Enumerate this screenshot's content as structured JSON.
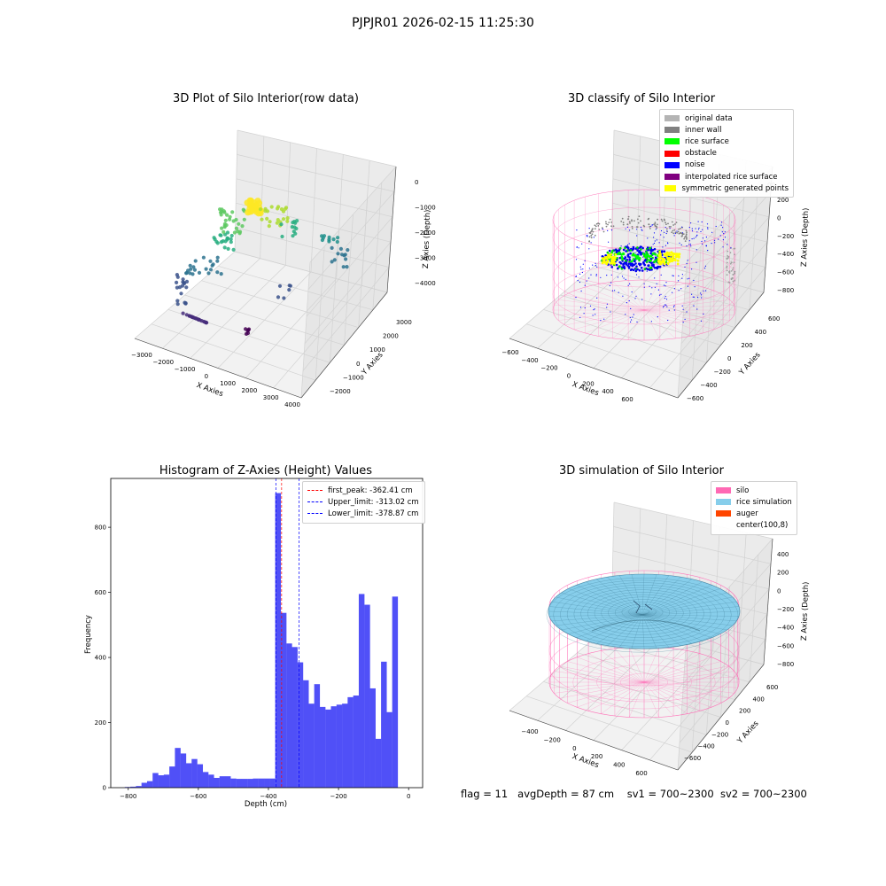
{
  "figure_title": "PJPJR01 2026-02-15 11:25:30",
  "status": {
    "flag": "flag = 11",
    "avg_depth": "avgDepth = 87 cm",
    "sv1": "sv1 = 700~2300",
    "sv2": "sv2 = 700~2300"
  },
  "colors": {
    "hist_bar": "#5050f7",
    "first_peak_line": "#ff0000",
    "limit_lines": "#0000ff",
    "silo_wire": "#ff69b4",
    "rice": "#87ceeb",
    "auger": "#ff4500"
  },
  "chart_data": [
    {
      "type": "scatter",
      "subtype": "3d-scatter",
      "title": "3D Plot of Silo Interior(row data)",
      "xlabel": "X Axies",
      "ylabel": "Y Axies",
      "zlabel": "Z Axies (Depth)",
      "x_ticks": [
        "−3000",
        "−2000",
        "−1000",
        "0",
        "1000",
        "2000",
        "3000",
        "4000"
      ],
      "y_ticks": [
        "−2000",
        "−1000",
        "0",
        "1000",
        "2000",
        "3000"
      ],
      "z_ticks": [
        "0",
        "−1000",
        "−2000",
        "−3000",
        "−4000"
      ],
      "colormap": "viridis",
      "grid": true
    },
    {
      "type": "scatter",
      "subtype": "3d-scatter",
      "title": "3D classify of Silo Interior",
      "xlabel": "X Axies",
      "ylabel": "Y Axies",
      "zlabel": "Z Axies (Depth)",
      "x_ticks": [
        "−600",
        "−400",
        "−200",
        "0",
        "200",
        "400",
        "600"
      ],
      "y_ticks": [
        "−600",
        "−400",
        "−200",
        "0",
        "200",
        "400",
        "600"
      ],
      "z_ticks": [
        "200",
        "0",
        "−200",
        "−400",
        "−600",
        "−800"
      ],
      "z_top_tick_partial": "00",
      "legend_position": "upper right",
      "legend": [
        {
          "label": "original data",
          "color": "#b4b4b4"
        },
        {
          "label": "inner wall",
          "color": "#808080"
        },
        {
          "label": "rice surface",
          "color": "#00ff00"
        },
        {
          "label": "obstacle",
          "color": "#ff0000"
        },
        {
          "label": "noise",
          "color": "#0000ff"
        },
        {
          "label": "interpolated rice surface",
          "color": "#800080"
        },
        {
          "label": "symmetric generated points",
          "color": "#ffff00"
        }
      ],
      "grid": true
    },
    {
      "type": "bar",
      "subtype": "histogram",
      "title": "Histogram of Z-Axies (Height) Values",
      "xlabel": "Depth (cm)",
      "ylabel": "Frequency",
      "xlim": [
        -850,
        40
      ],
      "ylim": [
        0,
        950
      ],
      "x_ticks": [
        -800,
        -600,
        -400,
        -200,
        0
      ],
      "x_tick_labels": [
        "−800",
        "−600",
        "−400",
        "−200",
        "0"
      ],
      "y_ticks": [
        0,
        200,
        400,
        600,
        800
      ],
      "bin_width": 15.9,
      "bin_starts": [
        -810,
        -794.1,
        -778.2,
        -762.3,
        -746.4,
        -730.5,
        -714.6,
        -698.7,
        -682.8,
        -666.9,
        -651,
        -635.1,
        -619.2,
        -603.3,
        -587.4,
        -571.5,
        -555.6,
        -539.7,
        -523.8,
        -507.9,
        -492,
        -476.1,
        -460.2,
        -444.3,
        -428.4,
        -412.5,
        -396.6,
        -380.7,
        -364.8,
        -348.9,
        -333,
        -317.1,
        -301.2,
        -285.3,
        -269.4,
        -253.5,
        -237.6,
        -221.7,
        -205.8,
        -189.9,
        -174,
        -158.1,
        -142.2,
        -126.3,
        -110.4,
        -94.5,
        -78.6,
        -62.7,
        -46.8,
        -30.9,
        -15
      ],
      "values": [
        2,
        3,
        5,
        15,
        20,
        45,
        38,
        40,
        65,
        122,
        105,
        75,
        88,
        72,
        48,
        40,
        30,
        35,
        35,
        28,
        27,
        27,
        27,
        28,
        28,
        28,
        28,
        905,
        537,
        443,
        432,
        385,
        330,
        258,
        318,
        248,
        240,
        250,
        255,
        258,
        278,
        283,
        595,
        562,
        305,
        150,
        387,
        232,
        587,
        0,
        0
      ],
      "reference_lines": [
        {
          "label": "first_peak: -362.41 cm",
          "x": -362.41,
          "color": "#ff0000",
          "style": "dashed"
        },
        {
          "label": "Upper_limit: -313.02 cm",
          "x": -313.02,
          "color": "#0000ff",
          "style": "dashed"
        },
        {
          "label": "Lower_limit: -378.87 cm",
          "x": -378.87,
          "color": "#0000ff",
          "style": "dashed"
        }
      ],
      "legend_position": "upper right",
      "grid": false
    },
    {
      "type": "area",
      "subtype": "3d-surface",
      "title": "3D simulation of Silo Interior",
      "xlabel": "X Axies",
      "ylabel": "Y Axies",
      "zlabel": "Z Axies (Depth)",
      "x_ticks": [
        "−400",
        "−200",
        "0",
        "200",
        "400",
        "600"
      ],
      "y_ticks": [
        "−600",
        "−400",
        "−200",
        "0",
        "200",
        "400",
        "600"
      ],
      "z_ticks": [
        "400",
        "200",
        "0",
        "−200",
        "−400",
        "−600",
        "−800"
      ],
      "legend_position": "upper right",
      "legend": [
        {
          "label": "silo",
          "color": "#ff69b4"
        },
        {
          "label": "rice simulation",
          "color": "#87ceeb"
        },
        {
          "label": "auger",
          "color": "#ff4500"
        },
        {
          "label": "center(100,8)",
          "color": "transparent"
        }
      ],
      "grid": true
    }
  ]
}
